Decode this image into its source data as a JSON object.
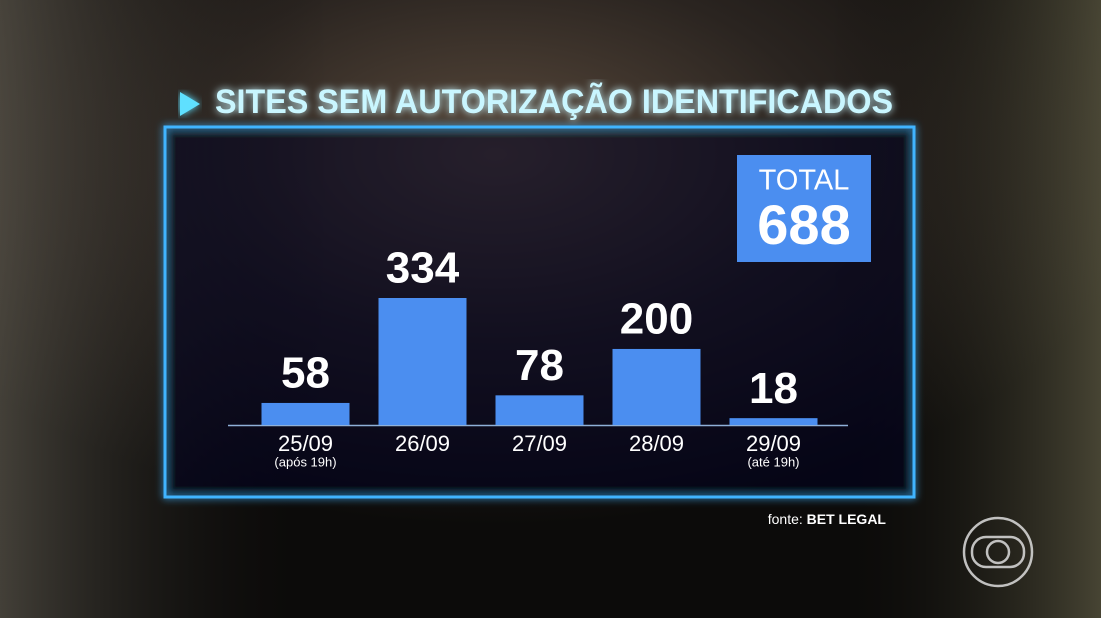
{
  "chart_data": {
    "type": "bar",
    "title": "SITES SEM AUTORIZAÇÃO IDENTIFICADOS",
    "categories": [
      "25/09",
      "26/09",
      "27/09",
      "28/09",
      "29/09"
    ],
    "category_notes": [
      "(após 19h)",
      null,
      null,
      null,
      "(até 19h)"
    ],
    "values": [
      58,
      334,
      78,
      200,
      18
    ],
    "color": "#4b8ef0",
    "total": {
      "label": "TOTAL",
      "value": 688
    },
    "source": {
      "label": "fonte:",
      "name": "BET LEGAL"
    }
  }
}
